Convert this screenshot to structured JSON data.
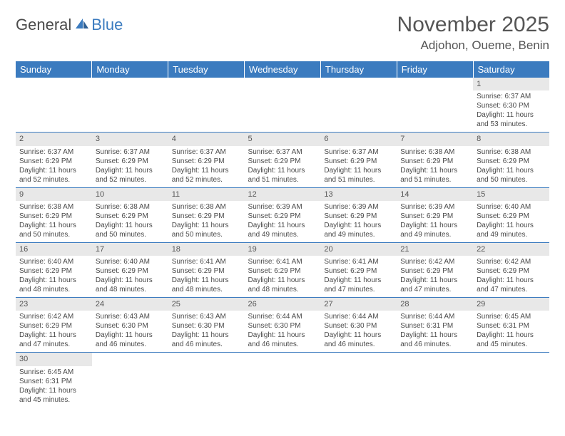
{
  "brand": {
    "part1": "General",
    "part2": "Blue"
  },
  "title": {
    "month_year": "November 2025",
    "location": "Adjohon, Oueme, Benin"
  },
  "colors": {
    "header_bg": "#3b7bbf",
    "header_text": "#ffffff",
    "daynum_bg": "#e8e8e8",
    "rule": "#3b7bbf",
    "body_text": "#4a4a4a"
  },
  "weekdays": [
    "Sunday",
    "Monday",
    "Tuesday",
    "Wednesday",
    "Thursday",
    "Friday",
    "Saturday"
  ],
  "weeks": [
    [
      null,
      null,
      null,
      null,
      null,
      null,
      {
        "n": "1",
        "sr": "Sunrise: 6:37 AM",
        "ss": "Sunset: 6:30 PM",
        "dl": "Daylight: 11 hours and 53 minutes."
      }
    ],
    [
      {
        "n": "2",
        "sr": "Sunrise: 6:37 AM",
        "ss": "Sunset: 6:29 PM",
        "dl": "Daylight: 11 hours and 52 minutes."
      },
      {
        "n": "3",
        "sr": "Sunrise: 6:37 AM",
        "ss": "Sunset: 6:29 PM",
        "dl": "Daylight: 11 hours and 52 minutes."
      },
      {
        "n": "4",
        "sr": "Sunrise: 6:37 AM",
        "ss": "Sunset: 6:29 PM",
        "dl": "Daylight: 11 hours and 52 minutes."
      },
      {
        "n": "5",
        "sr": "Sunrise: 6:37 AM",
        "ss": "Sunset: 6:29 PM",
        "dl": "Daylight: 11 hours and 51 minutes."
      },
      {
        "n": "6",
        "sr": "Sunrise: 6:37 AM",
        "ss": "Sunset: 6:29 PM",
        "dl": "Daylight: 11 hours and 51 minutes."
      },
      {
        "n": "7",
        "sr": "Sunrise: 6:38 AM",
        "ss": "Sunset: 6:29 PM",
        "dl": "Daylight: 11 hours and 51 minutes."
      },
      {
        "n": "8",
        "sr": "Sunrise: 6:38 AM",
        "ss": "Sunset: 6:29 PM",
        "dl": "Daylight: 11 hours and 50 minutes."
      }
    ],
    [
      {
        "n": "9",
        "sr": "Sunrise: 6:38 AM",
        "ss": "Sunset: 6:29 PM",
        "dl": "Daylight: 11 hours and 50 minutes."
      },
      {
        "n": "10",
        "sr": "Sunrise: 6:38 AM",
        "ss": "Sunset: 6:29 PM",
        "dl": "Daylight: 11 hours and 50 minutes."
      },
      {
        "n": "11",
        "sr": "Sunrise: 6:38 AM",
        "ss": "Sunset: 6:29 PM",
        "dl": "Daylight: 11 hours and 50 minutes."
      },
      {
        "n": "12",
        "sr": "Sunrise: 6:39 AM",
        "ss": "Sunset: 6:29 PM",
        "dl": "Daylight: 11 hours and 49 minutes."
      },
      {
        "n": "13",
        "sr": "Sunrise: 6:39 AM",
        "ss": "Sunset: 6:29 PM",
        "dl": "Daylight: 11 hours and 49 minutes."
      },
      {
        "n": "14",
        "sr": "Sunrise: 6:39 AM",
        "ss": "Sunset: 6:29 PM",
        "dl": "Daylight: 11 hours and 49 minutes."
      },
      {
        "n": "15",
        "sr": "Sunrise: 6:40 AM",
        "ss": "Sunset: 6:29 PM",
        "dl": "Daylight: 11 hours and 49 minutes."
      }
    ],
    [
      {
        "n": "16",
        "sr": "Sunrise: 6:40 AM",
        "ss": "Sunset: 6:29 PM",
        "dl": "Daylight: 11 hours and 48 minutes."
      },
      {
        "n": "17",
        "sr": "Sunrise: 6:40 AM",
        "ss": "Sunset: 6:29 PM",
        "dl": "Daylight: 11 hours and 48 minutes."
      },
      {
        "n": "18",
        "sr": "Sunrise: 6:41 AM",
        "ss": "Sunset: 6:29 PM",
        "dl": "Daylight: 11 hours and 48 minutes."
      },
      {
        "n": "19",
        "sr": "Sunrise: 6:41 AM",
        "ss": "Sunset: 6:29 PM",
        "dl": "Daylight: 11 hours and 48 minutes."
      },
      {
        "n": "20",
        "sr": "Sunrise: 6:41 AM",
        "ss": "Sunset: 6:29 PM",
        "dl": "Daylight: 11 hours and 47 minutes."
      },
      {
        "n": "21",
        "sr": "Sunrise: 6:42 AM",
        "ss": "Sunset: 6:29 PM",
        "dl": "Daylight: 11 hours and 47 minutes."
      },
      {
        "n": "22",
        "sr": "Sunrise: 6:42 AM",
        "ss": "Sunset: 6:29 PM",
        "dl": "Daylight: 11 hours and 47 minutes."
      }
    ],
    [
      {
        "n": "23",
        "sr": "Sunrise: 6:42 AM",
        "ss": "Sunset: 6:29 PM",
        "dl": "Daylight: 11 hours and 47 minutes."
      },
      {
        "n": "24",
        "sr": "Sunrise: 6:43 AM",
        "ss": "Sunset: 6:30 PM",
        "dl": "Daylight: 11 hours and 46 minutes."
      },
      {
        "n": "25",
        "sr": "Sunrise: 6:43 AM",
        "ss": "Sunset: 6:30 PM",
        "dl": "Daylight: 11 hours and 46 minutes."
      },
      {
        "n": "26",
        "sr": "Sunrise: 6:44 AM",
        "ss": "Sunset: 6:30 PM",
        "dl": "Daylight: 11 hours and 46 minutes."
      },
      {
        "n": "27",
        "sr": "Sunrise: 6:44 AM",
        "ss": "Sunset: 6:30 PM",
        "dl": "Daylight: 11 hours and 46 minutes."
      },
      {
        "n": "28",
        "sr": "Sunrise: 6:44 AM",
        "ss": "Sunset: 6:31 PM",
        "dl": "Daylight: 11 hours and 46 minutes."
      },
      {
        "n": "29",
        "sr": "Sunrise: 6:45 AM",
        "ss": "Sunset: 6:31 PM",
        "dl": "Daylight: 11 hours and 45 minutes."
      }
    ],
    [
      {
        "n": "30",
        "sr": "Sunrise: 6:45 AM",
        "ss": "Sunset: 6:31 PM",
        "dl": "Daylight: 11 hours and 45 minutes."
      },
      null,
      null,
      null,
      null,
      null,
      null
    ]
  ]
}
